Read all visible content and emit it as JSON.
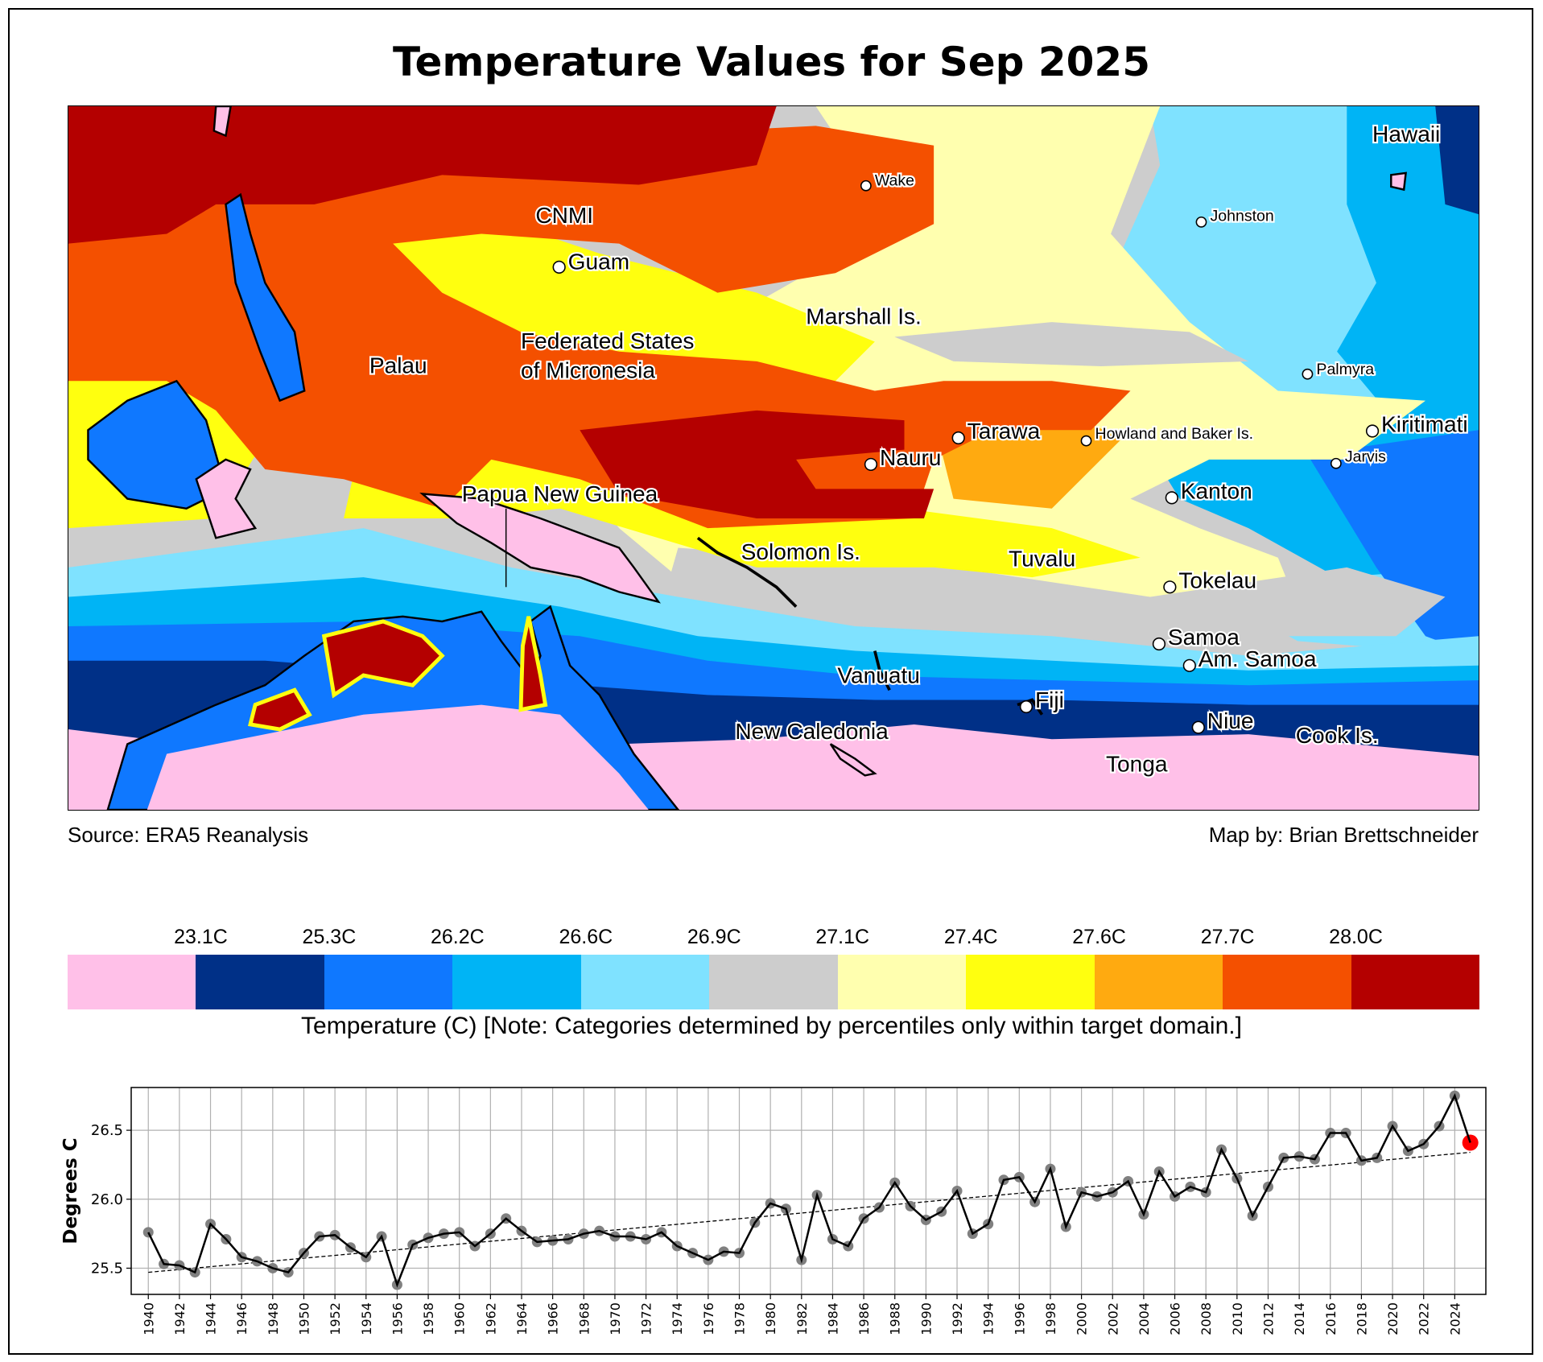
{
  "title": "Temperature Values for Sep 2025",
  "map": {
    "source": "Source: ERA5 Reanalysis",
    "credit": "Map by: Brian Brettschneider",
    "labels": [
      {
        "text": "Hawaii",
        "marker": false
      },
      {
        "text": "Wake",
        "marker": true
      },
      {
        "text": "Johnston",
        "marker": true
      },
      {
        "text": "CNMI",
        "marker": false
      },
      {
        "text": "Guam",
        "marker": true
      },
      {
        "text": "Marshall Is.",
        "marker": false
      },
      {
        "text": "Palau",
        "marker": false
      },
      {
        "text": "Federated States",
        "marker": false
      },
      {
        "text": "of Micronesia",
        "marker": false
      },
      {
        "text": "Palmyra",
        "marker": true
      },
      {
        "text": "Tarawa",
        "marker": true
      },
      {
        "text": "Howland and Baker Is.",
        "marker": true
      },
      {
        "text": "Kiritimati",
        "marker": true
      },
      {
        "text": "Nauru",
        "marker": true
      },
      {
        "text": "Jarvis",
        "marker": true
      },
      {
        "text": "Kanton",
        "marker": true
      },
      {
        "text": "Papua New Guinea",
        "marker": false
      },
      {
        "text": "Solomon Is.",
        "marker": false
      },
      {
        "text": "Tuvalu",
        "marker": false
      },
      {
        "text": "Tokelau",
        "marker": true
      },
      {
        "text": "Samoa",
        "marker": true
      },
      {
        "text": "Am. Samoa",
        "marker": true
      },
      {
        "text": "Vanuatu",
        "marker": false
      },
      {
        "text": "Fiji",
        "marker": true
      },
      {
        "text": "Niue",
        "marker": true
      },
      {
        "text": "New Caledonia",
        "marker": false
      },
      {
        "text": "Cook Is.",
        "marker": false
      },
      {
        "text": "Tonga",
        "marker": false
      }
    ]
  },
  "colorbar": {
    "thresholds": [
      "23.1C",
      "25.3C",
      "26.2C",
      "26.6C",
      "26.9C",
      "27.1C",
      "27.4C",
      "27.6C",
      "27.7C",
      "28.0C"
    ],
    "colors": [
      "#FFC0E8",
      "#003087",
      "#0F78FF",
      "#00B4F5",
      "#7FE2FF",
      "#CDCDCD",
      "#FFFFAF",
      "#FFFF0F",
      "#FFAA10",
      "#F45000",
      "#B40000"
    ],
    "caption": "Temperature (C)  [Note: Categories determined by percentiles only within target domain.]"
  },
  "chart_data": {
    "type": "line",
    "title": "",
    "xlabel": "",
    "ylabel": "Degrees C",
    "ylim": [
      25.31,
      26.81
    ],
    "yticks": [
      "25.5",
      "26.0",
      "26.5"
    ],
    "xlim": [
      1938.9,
      2026.0
    ],
    "grid": true,
    "x": [
      1940,
      1941,
      1942,
      1943,
      1944,
      1945,
      1946,
      1947,
      1948,
      1949,
      1950,
      1951,
      1952,
      1953,
      1954,
      1955,
      1956,
      1957,
      1958,
      1959,
      1960,
      1961,
      1962,
      1963,
      1964,
      1965,
      1966,
      1967,
      1968,
      1969,
      1970,
      1971,
      1972,
      1973,
      1974,
      1975,
      1976,
      1977,
      1978,
      1979,
      1980,
      1981,
      1982,
      1983,
      1984,
      1985,
      1986,
      1987,
      1988,
      1989,
      1990,
      1991,
      1992,
      1993,
      1994,
      1995,
      1996,
      1997,
      1998,
      1999,
      2000,
      2001,
      2002,
      2003,
      2004,
      2005,
      2006,
      2007,
      2008,
      2009,
      2010,
      2011,
      2012,
      2013,
      2014,
      2015,
      2016,
      2017,
      2018,
      2019,
      2020,
      2021,
      2022,
      2023,
      2024,
      2025
    ],
    "values": [
      25.76,
      25.53,
      25.52,
      25.47,
      25.82,
      25.71,
      25.58,
      25.55,
      25.5,
      25.47,
      25.61,
      25.73,
      25.74,
      25.65,
      25.58,
      25.73,
      25.38,
      25.67,
      25.72,
      25.75,
      25.76,
      25.66,
      25.75,
      25.86,
      25.77,
      25.69,
      25.7,
      25.71,
      25.75,
      25.77,
      25.73,
      25.73,
      25.71,
      25.76,
      25.66,
      25.61,
      25.56,
      25.62,
      25.61,
      25.83,
      25.97,
      25.93,
      25.56,
      26.03,
      25.71,
      25.66,
      25.86,
      25.94,
      26.12,
      25.95,
      25.85,
      25.91,
      26.06,
      25.75,
      25.82,
      26.14,
      26.16,
      25.98,
      26.22,
      25.8,
      26.05,
      26.02,
      26.05,
      26.13,
      25.89,
      26.2,
      26.02,
      26.09,
      26.05,
      26.36,
      26.15,
      25.88,
      26.09,
      26.3,
      26.31,
      26.29,
      26.48,
      26.48,
      26.28,
      26.3,
      26.53,
      26.35,
      26.4,
      26.53,
      26.75,
      26.41
    ],
    "trend": {
      "x": [
        1940,
        2025
      ],
      "y": [
        25.47,
        26.34
      ]
    },
    "highlight": {
      "year": 2025,
      "value": 26.41,
      "color": "#FF0000"
    },
    "xticks": [
      "1940",
      "1942",
      "1944",
      "1946",
      "1948",
      "1950",
      "1952",
      "1954",
      "1956",
      "1958",
      "1960",
      "1962",
      "1964",
      "1966",
      "1968",
      "1970",
      "1972",
      "1974",
      "1976",
      "1978",
      "1980",
      "1982",
      "1984",
      "1986",
      "1988",
      "1990",
      "1992",
      "1994",
      "1996",
      "1998",
      "2000",
      "2002",
      "2004",
      "2006",
      "2008",
      "2010",
      "2012",
      "2014",
      "2016",
      "2018",
      "2020",
      "2022",
      "2024"
    ],
    "marker_color": "#808080",
    "line_color": "#000000"
  }
}
